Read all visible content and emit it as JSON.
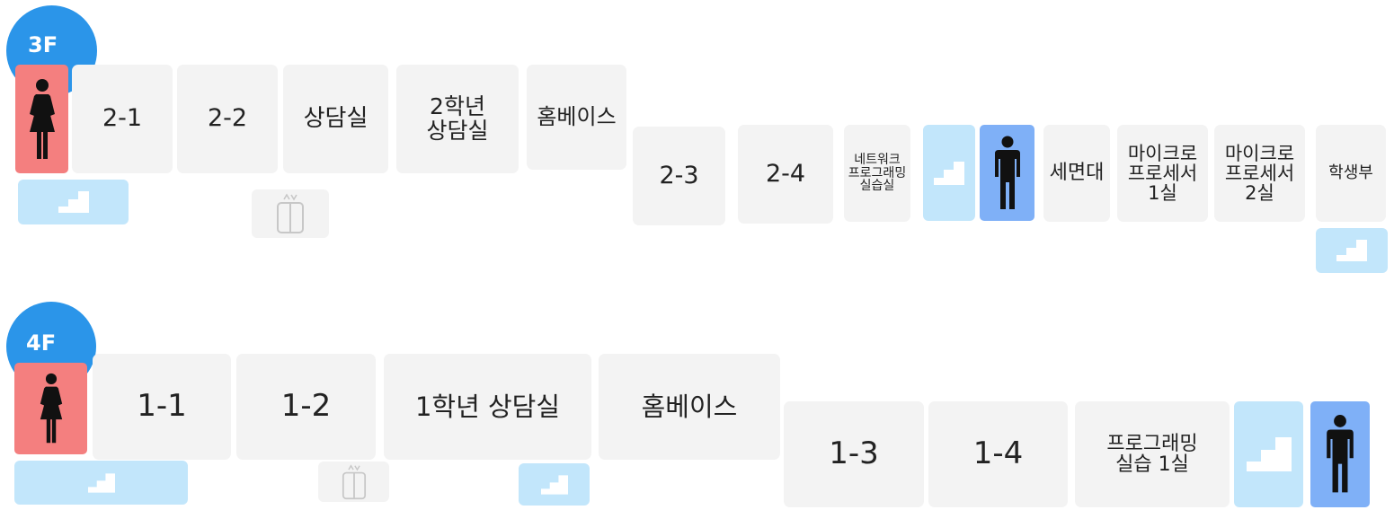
{
  "floors": [
    {
      "badge": "3F",
      "rooms": {
        "r_2_1": "2-1",
        "r_2_2": "2-2",
        "counseling": "상담실",
        "grade2_counseling_l1": "2학년",
        "grade2_counseling_l2": "상담실",
        "homebase": "홈베이스",
        "r_2_3": "2-3",
        "r_2_4": "2-4",
        "network_lab_l1": "네트워크",
        "network_lab_l2": "프로그래밍",
        "network_lab_l3": "실습실",
        "washroom": "세면대",
        "micro1_l1": "마이크로",
        "micro1_l2": "프로세서",
        "micro1_l3": "1실",
        "micro2_l1": "마이크로",
        "micro2_l2": "프로세서",
        "micro2_l3": "2실",
        "student_affairs": "학생부"
      }
    },
    {
      "badge": "4F",
      "rooms": {
        "r_1_1": "1-1",
        "r_1_2": "1-2",
        "grade1_counseling": "1학년 상담실",
        "homebase": "홈베이스",
        "r_1_3": "1-3",
        "r_1_4": "1-4",
        "programming_lab_l1": "프로그래밍",
        "programming_lab_l2": "실습 1실"
      }
    }
  ],
  "icons": {
    "female_restroom": "female-restroom-icon",
    "male_restroom": "male-restroom-icon",
    "stairs": "stairs-icon",
    "elevator": "elevator-icon"
  },
  "colors": {
    "floor_badge": "#2b95e9",
    "room": "#f3f3f3",
    "female_restroom": "#f47f7f",
    "male_restroom": "#7fb0f7",
    "stairs": "#c2e6fb",
    "text": "#222222"
  }
}
